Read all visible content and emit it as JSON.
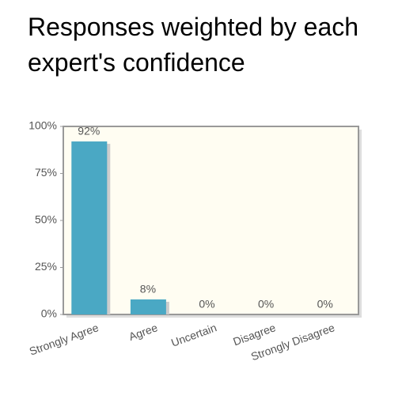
{
  "chart_data": {
    "type": "bar",
    "title": "Responses weighted by each expert's confidence",
    "categories": [
      "Strongly Agree",
      "Agree",
      "Uncertain",
      "Disagree",
      "Strongly Disagree"
    ],
    "values": [
      92,
      8,
      0,
      0,
      0
    ],
    "value_labels": [
      "92%",
      "8%",
      "0%",
      "0%",
      "0%"
    ],
    "color": "#4aa8c4",
    "ylim": [
      0,
      100
    ],
    "yticks": [
      {
        "value": 0,
        "label": "0%"
      },
      {
        "value": 25,
        "label": "25%"
      },
      {
        "value": 50,
        "label": "50%"
      },
      {
        "value": 75,
        "label": "75%"
      },
      {
        "value": 100,
        "label": "100%"
      }
    ]
  }
}
